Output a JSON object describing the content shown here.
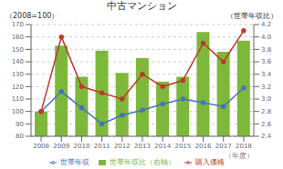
{
  "chart_data": {
    "type": "bar",
    "title": "中古マンション",
    "ylabel": "（2008=100）",
    "y2label": "（世帯年収比）",
    "xlabel": "（年度）",
    "categories": [
      "2008",
      "2009",
      "2010",
      "2011",
      "2012",
      "2013",
      "2014",
      "2015",
      "2016",
      "2017",
      "2018"
    ],
    "series": [
      {
        "name": "世帯年収比（右軸）",
        "type": "bar",
        "color": "#7db83a",
        "values": [
          100,
          153,
          128,
          149,
          131,
          143,
          124,
          128,
          164,
          148,
          157
        ]
      },
      {
        "name": "世帯年収",
        "type": "line",
        "color": "#4472c4",
        "marker": "circle",
        "values": [
          100,
          116,
          103,
          90,
          97,
          101,
          106,
          110,
          107,
          104,
          119
        ]
      },
      {
        "name": "購入価格",
        "type": "line",
        "color": "#c0392b",
        "marker": "circle",
        "axis": "y2",
        "values": [
          2.8,
          4.0,
          3.2,
          3.1,
          3.0,
          3.4,
          3.2,
          3.3,
          3.9,
          3.6,
          4.1
        ]
      }
    ],
    "ylim": [
      80,
      170
    ],
    "yticks": [
      80,
      90,
      100,
      110,
      120,
      130,
      140,
      150,
      160,
      170
    ],
    "y2lim": [
      2.4,
      4.2
    ],
    "y2ticks": [
      2.4,
      2.6,
      2.8,
      {
        "value": 3,
        "label": "3.0"
      },
      3.2,
      3.4,
      3.6,
      3.8,
      {
        "value": 4,
        "label": "4.0"
      },
      4.2
    ],
    "grid": true,
    "legend": "bottom"
  }
}
